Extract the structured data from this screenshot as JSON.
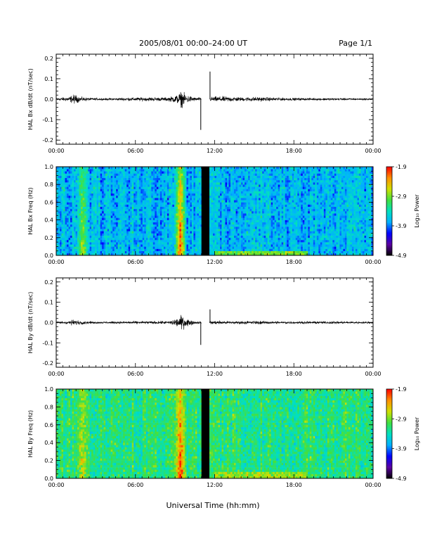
{
  "header": {
    "title": "2005/08/01   00:00–24:00 UT",
    "page_label": "Page 1/1"
  },
  "footer": {
    "xlabel": "Universal Time (hh:mm)"
  },
  "colors": {
    "trace": "#000000",
    "gap": "#000000",
    "colormap": [
      "#000000",
      "#5a00a0",
      "#0000ff",
      "#00b0ff",
      "#00e0c0",
      "#40e040",
      "#d0e000",
      "#ff9000",
      "#ff0000"
    ]
  },
  "chart_data": [
    {
      "type": "line",
      "ylabel": "HAL Bx dB/dt (nT/sec)",
      "xlim": [
        0,
        24
      ],
      "ylim": [
        -0.22,
        0.22
      ],
      "yticks": [
        "0.2",
        "0.1",
        "0.0",
        "-0.1",
        "-0.2"
      ],
      "ytick_values": [
        0.2,
        0.1,
        0.0,
        -0.1,
        -0.2
      ],
      "xticks": [
        "00:00",
        "06:00",
        "12:00",
        "18:00",
        "00:00"
      ],
      "envelope": {
        "x": [
          0,
          1,
          1.2,
          1.4,
          1.8,
          2.5,
          3.5,
          6.5,
          8.5,
          9.2,
          9.5,
          9.8,
          10.5,
          11.0,
          11.1,
          11.6,
          11.7,
          12.5,
          13.5,
          14.0,
          15.0,
          16.0,
          17.5,
          19.0,
          21.0,
          23.0,
          24.0
        ],
        "amplitude": [
          0.006,
          0.01,
          0.018,
          0.02,
          0.01,
          0.006,
          0.004,
          0.008,
          0.008,
          0.02,
          0.035,
          0.02,
          0.008,
          0.006,
          0.0,
          0.0,
          0.01,
          0.012,
          0.01,
          0.008,
          0.01,
          0.008,
          0.006,
          0.005,
          0.005,
          0.004,
          0.004
        ]
      },
      "spikes": [
        {
          "x": 10.95,
          "y": -0.15
        },
        {
          "x": 11.65,
          "y": 0.135
        }
      ],
      "data_gap": [
        11.0,
        11.6
      ]
    },
    {
      "type": "heatmap",
      "ylabel": "HAL Bx Freq (Hz)",
      "xlim": [
        0,
        24
      ],
      "ylim": [
        0,
        1.0
      ],
      "yticks": [
        "1.0",
        "0.8",
        "0.6",
        "0.4",
        "0.2",
        "0.0"
      ],
      "ytick_values": [
        1.0,
        0.8,
        0.6,
        0.4,
        0.2,
        0.0
      ],
      "xticks": [
        "00:00",
        "06:00",
        "12:00",
        "18:00",
        "00:00"
      ],
      "colorbar": {
        "label": "Log₁₀ Power",
        "min": -4.9,
        "max": -1.9,
        "ticks": [
          "-1.9",
          "-2.9",
          "-3.9",
          "-4.9"
        ],
        "tick_values": [
          -1.9,
          -2.9,
          -3.9,
          -4.9
        ]
      },
      "data_gap": [
        11.0,
        11.6
      ],
      "enhancements": [
        {
          "x_start": 1.5,
          "x_end": 2.5,
          "peak_log_power": -2.7
        },
        {
          "x_start": 8.9,
          "x_end": 9.9,
          "peak_log_power": -2.0
        },
        {
          "x_start": 12.0,
          "x_end": 19.0,
          "band_hz": [
            0.0,
            0.06
          ],
          "peak_log_power": -2.9
        }
      ],
      "background_log_power": -3.7
    },
    {
      "type": "line",
      "ylabel": "HAL By dB/dt (nT/sec)",
      "xlim": [
        0,
        24
      ],
      "ylim": [
        -0.22,
        0.22
      ],
      "yticks": [
        "0.2",
        "0.1",
        "0.0",
        "-0.1",
        "-0.2"
      ],
      "ytick_values": [
        0.2,
        0.1,
        0.0,
        -0.1,
        -0.2
      ],
      "xticks": [
        "00:00",
        "06:00",
        "12:00",
        "18:00",
        "00:00"
      ],
      "envelope": {
        "x": [
          0,
          1,
          1.2,
          1.5,
          2.5,
          3.5,
          6.5,
          8.5,
          9.2,
          9.5,
          9.8,
          10.5,
          11.0,
          11.1,
          11.6,
          11.7,
          12.5,
          13.5,
          15.0,
          16.0,
          18.0,
          21.0,
          24.0
        ],
        "amplitude": [
          0.004,
          0.008,
          0.012,
          0.01,
          0.005,
          0.004,
          0.006,
          0.006,
          0.02,
          0.032,
          0.018,
          0.006,
          0.004,
          0.0,
          0.0,
          0.008,
          0.007,
          0.006,
          0.007,
          0.006,
          0.005,
          0.005,
          0.004
        ]
      },
      "spikes": [
        {
          "x": 10.95,
          "y": -0.11
        },
        {
          "x": 11.65,
          "y": 0.065
        }
      ],
      "data_gap": [
        11.0,
        11.6
      ]
    },
    {
      "type": "heatmap",
      "ylabel": "HAL By Freq (Hz)",
      "xlim": [
        0,
        24
      ],
      "ylim": [
        0,
        1.0
      ],
      "yticks": [
        "1.0",
        "0.8",
        "0.6",
        "0.4",
        "0.2",
        "0.0"
      ],
      "ytick_values": [
        1.0,
        0.8,
        0.6,
        0.4,
        0.2,
        0.0
      ],
      "xticks": [
        "00:00",
        "06:00",
        "12:00",
        "18:00",
        "00:00"
      ],
      "colorbar": {
        "label": "Log₁₀ Power",
        "min": -4.9,
        "max": -1.9,
        "ticks": [
          "-1.9",
          "-2.9",
          "-3.9",
          "-4.9"
        ],
        "tick_values": [
          -1.9,
          -2.9,
          -3.9,
          -4.9
        ]
      },
      "data_gap": [
        11.0,
        11.6
      ],
      "enhancements": [
        {
          "x_start": 1.5,
          "x_end": 2.5,
          "peak_log_power": -2.6
        },
        {
          "x_start": 8.9,
          "x_end": 9.9,
          "peak_log_power": -2.0
        },
        {
          "x_start": 12.0,
          "x_end": 19.0,
          "band_hz": [
            0.0,
            0.08
          ],
          "peak_log_power": -2.8
        }
      ],
      "background_log_power": -3.2
    }
  ]
}
